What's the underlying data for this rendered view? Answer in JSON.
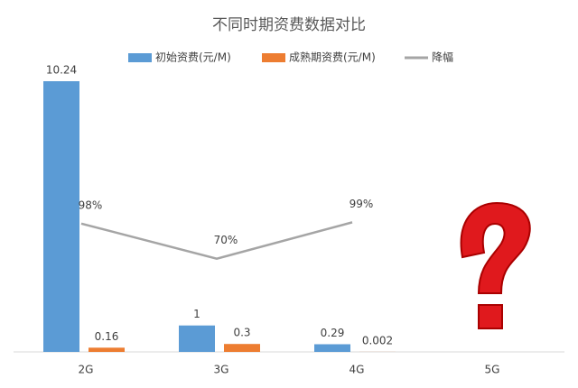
{
  "chart_data": {
    "type": "bar",
    "title": "不同时期资费数据对比",
    "categories": [
      "2G",
      "3G",
      "4G",
      "5G"
    ],
    "series": [
      {
        "name": "初始资费(元/M)",
        "color": "#5b9bd5",
        "values": [
          10.24,
          1,
          0.29,
          null
        ]
      },
      {
        "name": "成熟期资费(元/M)",
        "color": "#ed7d31",
        "values": [
          0.16,
          0.3,
          0.002,
          null
        ]
      },
      {
        "name": "降幅",
        "type": "line",
        "axis": "y2",
        "color": "#a5a5a5",
        "values": [
          98,
          70,
          99,
          null
        ],
        "value_labels": [
          "98%",
          "70%",
          "99%",
          null
        ]
      }
    ],
    "legend": "top"
  }
}
